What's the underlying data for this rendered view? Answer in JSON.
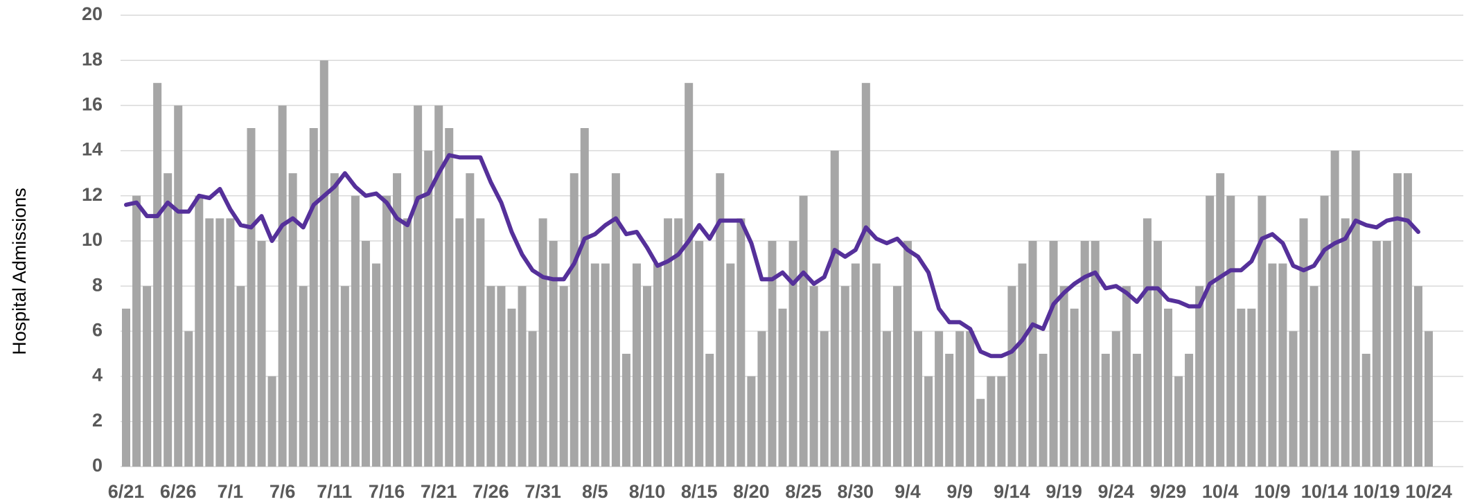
{
  "chart_data": {
    "type": "bar",
    "y_label": "Hospital Admissions",
    "categories": [
      "6/21",
      null,
      null,
      null,
      null,
      "6/26",
      null,
      null,
      null,
      null,
      "7/1",
      null,
      null,
      null,
      null,
      "7/6",
      null,
      null,
      null,
      null,
      "7/11",
      null,
      null,
      null,
      null,
      "7/16",
      null,
      null,
      null,
      null,
      "7/21",
      null,
      null,
      null,
      null,
      "7/26",
      null,
      null,
      null,
      null,
      "7/31",
      null,
      null,
      null,
      null,
      "8/5",
      null,
      null,
      null,
      null,
      "8/10",
      null,
      null,
      null,
      null,
      "8/15",
      null,
      null,
      null,
      null,
      "8/20",
      null,
      null,
      null,
      null,
      "8/25",
      null,
      null,
      null,
      null,
      "8/30",
      null,
      null,
      null,
      null,
      "9/4",
      null,
      null,
      null,
      null,
      "9/9",
      null,
      null,
      null,
      null,
      "9/14",
      null,
      null,
      null,
      null,
      "9/19",
      null,
      null,
      null,
      null,
      "9/24",
      null,
      null,
      null,
      null,
      "9/29",
      null,
      null,
      null,
      null,
      "10/4",
      null,
      null,
      null,
      null,
      "10/9",
      null,
      null,
      null,
      null,
      "10/14",
      null,
      null,
      null,
      null,
      "10/19",
      null,
      null,
      null,
      null,
      "10/24"
    ],
    "series": [
      {
        "type": "bar",
        "color": "#a6a6a6",
        "values": [
          7,
          12,
          8,
          17,
          13,
          16,
          6,
          12,
          11,
          11,
          11,
          8,
          15,
          10,
          4,
          16,
          13,
          8,
          15,
          18,
          13,
          8,
          12,
          10,
          9,
          12,
          13,
          11,
          16,
          14,
          16,
          15,
          11,
          13,
          11,
          8,
          8,
          7,
          8,
          6,
          11,
          10,
          8,
          13,
          15,
          9,
          9,
          13,
          5,
          9,
          8,
          9,
          11,
          11,
          17,
          10,
          5,
          13,
          9,
          11,
          4,
          6,
          10,
          7,
          10,
          12,
          8,
          6,
          14,
          8,
          9,
          17,
          9,
          6,
          8,
          10,
          6,
          4,
          6,
          5,
          6,
          6,
          3,
          4,
          4,
          8,
          9,
          10,
          5,
          10,
          8,
          7,
          10,
          10,
          5,
          6,
          8,
          5,
          11,
          10,
          7,
          4,
          5,
          8,
          12,
          13,
          12,
          7,
          7,
          12,
          9,
          9,
          6,
          11,
          8,
          12,
          14,
          11,
          14,
          5,
          10,
          10,
          13,
          13,
          8,
          6
        ]
      },
      {
        "type": "line",
        "color": "#55309a",
        "values": [
          11.6,
          11.7,
          11.1,
          11.1,
          11.7,
          11.3,
          11.3,
          12.0,
          11.9,
          12.3,
          11.4,
          10.7,
          10.6,
          11.1,
          10.0,
          10.7,
          11.0,
          10.6,
          11.6,
          12.0,
          12.4,
          13.0,
          12.4,
          12.0,
          12.1,
          11.7,
          11.0,
          10.7,
          11.9,
          12.1,
          13.0,
          13.8,
          13.7,
          13.7,
          13.7,
          12.6,
          11.7,
          10.4,
          9.4,
          8.7,
          8.4,
          8.3,
          8.3,
          9.0,
          10.1,
          10.3,
          10.7,
          11.0,
          10.3,
          10.4,
          9.7,
          8.9,
          9.1,
          9.4,
          10.0,
          10.7,
          10.1,
          10.9,
          10.9,
          10.9,
          9.9,
          8.3,
          8.3,
          8.6,
          8.1,
          8.6,
          8.1,
          8.4,
          9.6,
          9.3,
          9.6,
          10.6,
          10.1,
          9.9,
          10.1,
          9.6,
          9.3,
          8.6,
          7.0,
          6.4,
          6.4,
          6.1,
          5.1,
          4.9,
          4.9,
          5.1,
          5.6,
          6.3,
          6.1,
          7.2,
          7.7,
          8.1,
          8.4,
          8.6,
          7.9,
          8.0,
          7.7,
          7.3,
          7.9,
          7.9,
          7.4,
          7.3,
          7.1,
          7.1,
          8.1,
          8.4,
          8.7,
          8.7,
          9.1,
          10.1,
          10.3,
          9.9,
          8.9,
          8.7,
          8.9,
          9.6,
          9.9,
          10.1,
          10.9,
          10.7,
          10.6,
          10.9,
          11.0,
          10.9,
          10.4,
          null
        ]
      }
    ],
    "ylim": [
      0,
      20
    ],
    "yticks": [
      0,
      2,
      4,
      6,
      8,
      10,
      12,
      14,
      16,
      18,
      20
    ],
    "grid": true
  }
}
